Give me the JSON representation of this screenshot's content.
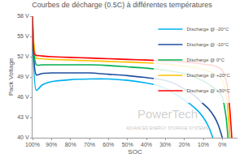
{
  "chart_data": {
    "type": "line",
    "title": "Courbes de décharge (0.5C) à différentes températures",
    "x_label": "SOC",
    "y_label": "Pack Voltage",
    "xlim": [
      100,
      -8
    ],
    "xticks": [
      {
        "value": 100,
        "label": "100%"
      },
      {
        "value": 90,
        "label": "90%"
      },
      {
        "value": 80,
        "label": "80%"
      },
      {
        "value": 70,
        "label": "70%"
      },
      {
        "value": 60,
        "label": "60%"
      },
      {
        "value": 50,
        "label": "50%"
      },
      {
        "value": 40,
        "label": "40%"
      },
      {
        "value": 30,
        "label": "30%"
      },
      {
        "value": 20,
        "label": "20%"
      },
      {
        "value": 10,
        "label": "10%"
      },
      {
        "value": 0,
        "label": "0%"
      }
    ],
    "ylim": [
      40,
      58
    ],
    "yticks": [
      {
        "value": 40,
        "label": "40 V"
      },
      {
        "value": 43,
        "label": "43 V"
      },
      {
        "value": 46,
        "label": "46 V"
      },
      {
        "value": 49,
        "label": "49 V"
      },
      {
        "value": 52,
        "label": "52 V"
      },
      {
        "value": 55,
        "label": "55 V"
      },
      {
        "value": 58,
        "label": "58 V"
      }
    ],
    "grid": false,
    "legend": "upper right",
    "series": [
      {
        "name": "Discharge @ -20°C",
        "color": "#00b0f0",
        "x": [
          100,
          98,
          95,
          90,
          80,
          70,
          60,
          50,
          40,
          35,
          30,
          25,
          20,
          17,
          13,
          10,
          7,
          5
        ],
        "values": [
          58,
          47,
          47.8,
          48.3,
          48.6,
          48.7,
          48.7,
          48.5,
          48.1,
          47.8,
          47.3,
          46.5,
          45.6,
          45,
          44,
          43,
          41.5,
          40
        ]
      },
      {
        "name": "Discharge @ -10°C",
        "color": "#1f4e9e",
        "x": [
          100,
          98,
          95,
          90,
          80,
          70,
          60,
          50,
          40,
          30,
          25,
          20,
          15,
          10,
          7,
          4,
          2,
          0
        ],
        "values": [
          58,
          49.3,
          49.5,
          49.6,
          49.6,
          49.6,
          49.4,
          49.2,
          48.9,
          48.5,
          48,
          47.2,
          46.3,
          45,
          44.2,
          43,
          41.8,
          40
        ]
      },
      {
        "name": "Discharge @ 0°C",
        "color": "#00b050",
        "x": [
          100,
          98,
          95,
          90,
          80,
          70,
          60,
          50,
          40,
          30,
          20,
          15,
          10,
          5,
          2,
          0,
          -2,
          -3
        ],
        "values": [
          58,
          50.8,
          50.8,
          50.8,
          50.8,
          50.8,
          50.7,
          50.5,
          50.3,
          50,
          49.5,
          49,
          48.4,
          47.5,
          46.8,
          46,
          43,
          40
        ]
      },
      {
        "name": "Discharge @ +20°C",
        "color": "#ffc000",
        "x": [
          100,
          98,
          95,
          90,
          80,
          70,
          60,
          50,
          40,
          30,
          20,
          15,
          10,
          5,
          2,
          0,
          -2,
          -3,
          -4
        ],
        "values": [
          58,
          51.8,
          51.7,
          51.6,
          51.5,
          51.4,
          51.3,
          51.2,
          51.1,
          50.9,
          50.6,
          50.4,
          50.1,
          49.6,
          49.1,
          48.5,
          46.5,
          44,
          40
        ]
      },
      {
        "name": "Discharge @ +50°C",
        "color": "#ff0000",
        "x": [
          100,
          99,
          98,
          95,
          90,
          80,
          70,
          60,
          50,
          40,
          30,
          20,
          15,
          10,
          5,
          2,
          0,
          -2,
          -3,
          -4,
          -5
        ],
        "values": [
          58,
          52.4,
          52.2,
          52.1,
          52,
          51.9,
          51.8,
          51.7,
          51.6,
          51.5,
          51.4,
          51.2,
          51.1,
          50.9,
          50.7,
          50.4,
          50,
          48.5,
          47,
          44,
          40
        ]
      }
    ],
    "annotations": [
      {
        "text": "PowerTech"
      },
      {
        "text": "ADVANCED ENERGY STORAGE SYSTEMS"
      }
    ]
  }
}
